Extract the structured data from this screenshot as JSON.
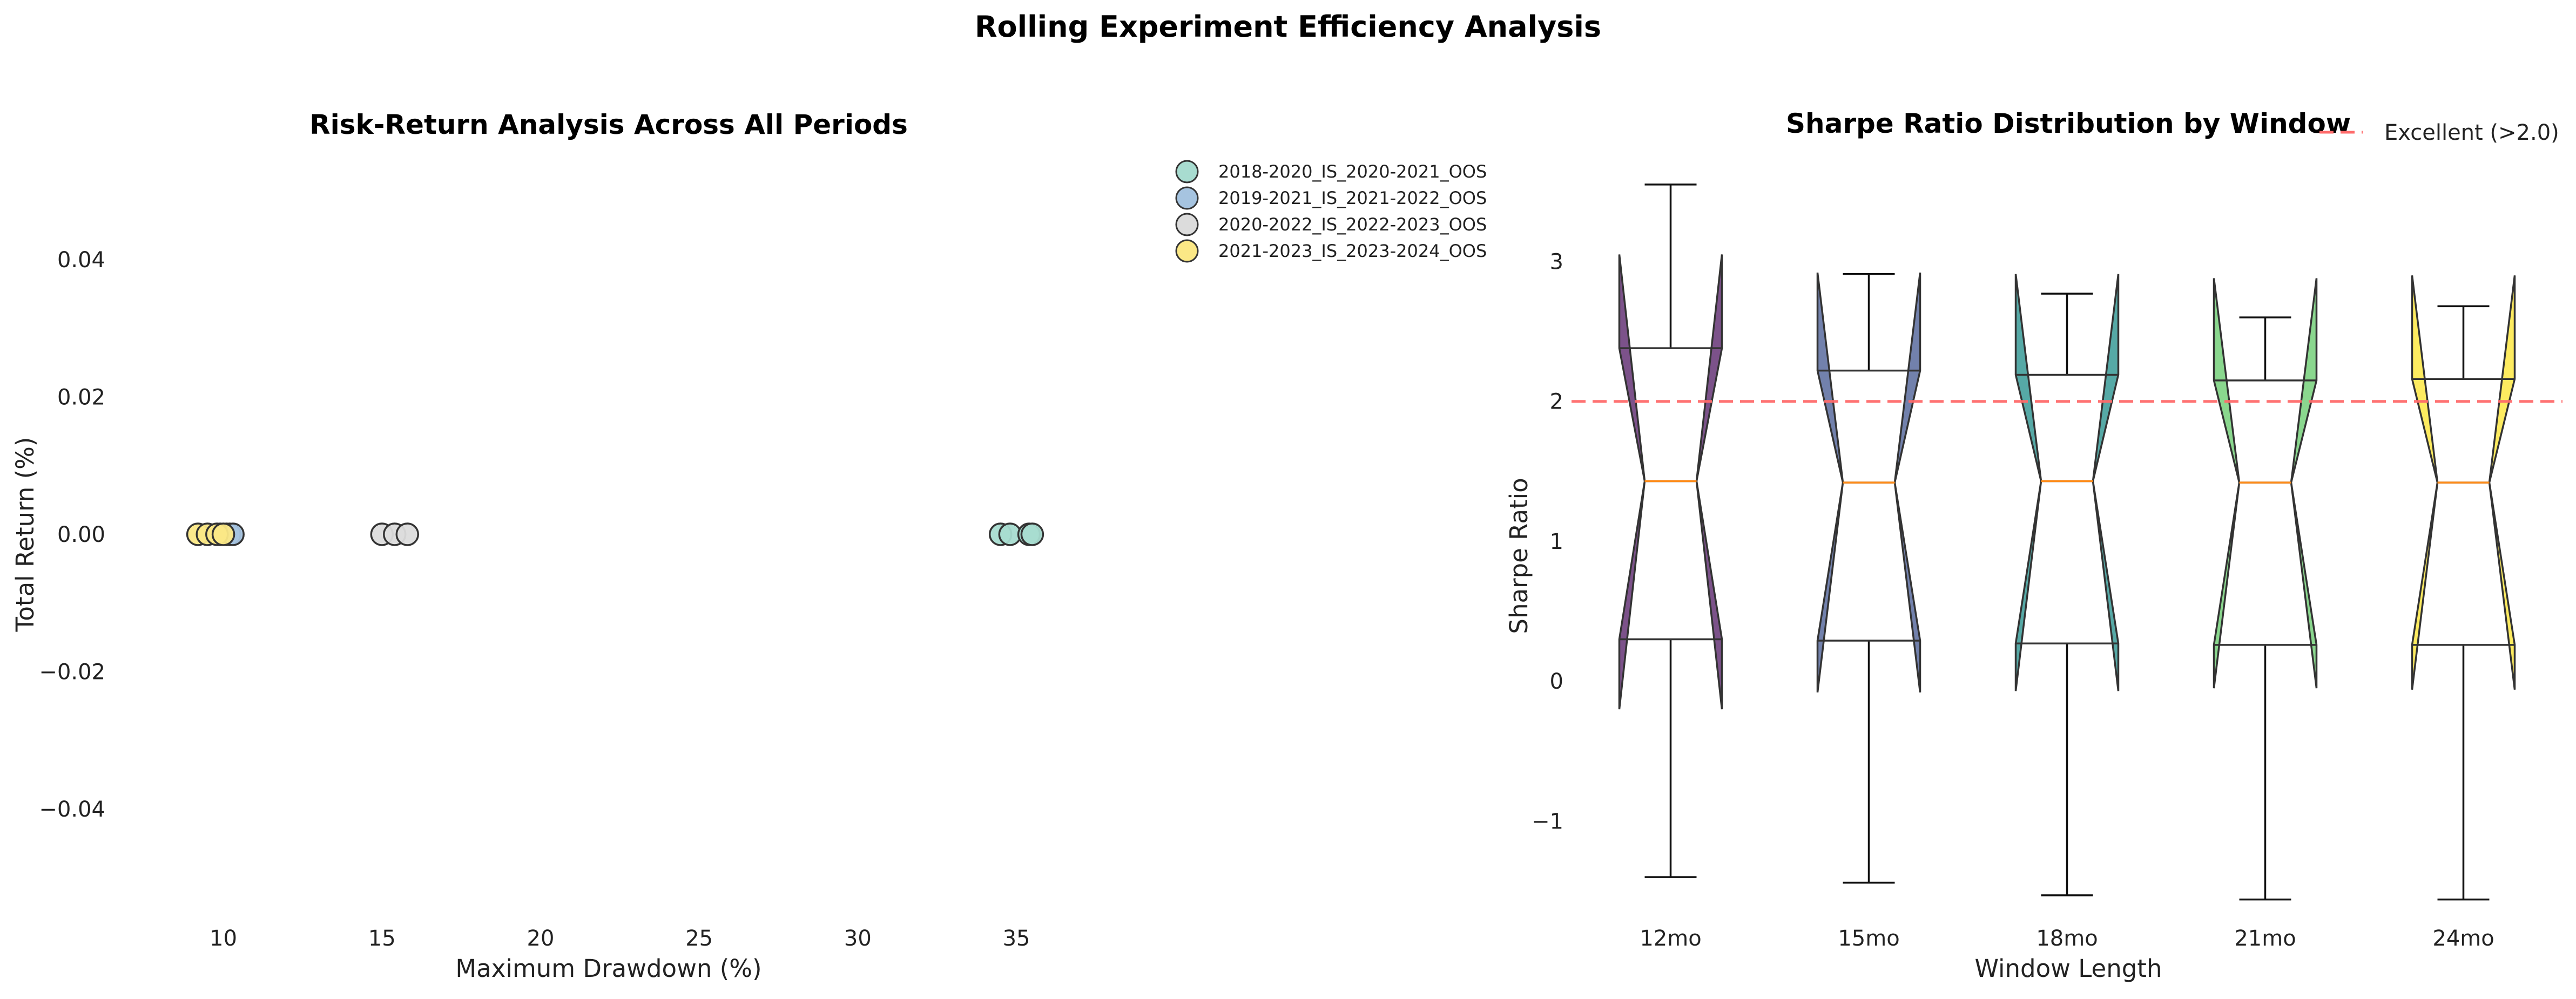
{
  "figure": {
    "title": "Rolling Experiment Efficiency Analysis"
  },
  "chart_data": [
    {
      "type": "scatter",
      "title": "Risk-Return Analysis Across All Periods",
      "xlabel": "Maximum Drawdown (%)",
      "ylabel": "Total Return (%)",
      "xlim": [
        7.3,
        38.2
      ],
      "ylim": [
        -0.055,
        0.055
      ],
      "xticks": [
        10,
        15,
        20,
        25,
        30,
        35
      ],
      "xtick_labels": [
        "10",
        "15",
        "20",
        "25",
        "30",
        "35"
      ],
      "yticks": [
        -0.04,
        -0.02,
        0.0,
        0.02,
        0.04
      ],
      "ytick_labels": [
        "−0.04",
        "−0.02",
        "0.00",
        "0.02",
        "0.04"
      ],
      "grid": false,
      "legend_position": "top-right",
      "series": [
        {
          "name": "2018-2020_IS_2020-2021_OOS",
          "color": "#a8dcd0",
          "points": [
            {
              "x": 10.1,
              "y": 0
            },
            {
              "x": 34.5,
              "y": 0
            },
            {
              "x": 34.8,
              "y": 0
            },
            {
              "x": 35.4,
              "y": 0
            },
            {
              "x": 35.5,
              "y": 0
            }
          ]
        },
        {
          "name": "2019-2021_IS_2021-2022_OOS",
          "color": "#a6c4e0",
          "points": [
            {
              "x": 9.9,
              "y": 0
            },
            {
              "x": 10.2,
              "y": 0
            },
            {
              "x": 10.3,
              "y": 0
            }
          ]
        },
        {
          "name": "2020-2022_IS_2022-2023_OOS",
          "color": "#dcdcdc",
          "points": [
            {
              "x": 15.0,
              "y": 0
            },
            {
              "x": 15.4,
              "y": 0
            },
            {
              "x": 15.8,
              "y": 0
            }
          ]
        },
        {
          "name": "2021-2023_IS_2023-2024_OOS",
          "color": "#fbe886",
          "points": [
            {
              "x": 9.2,
              "y": 0
            },
            {
              "x": 9.5,
              "y": 0
            },
            {
              "x": 9.8,
              "y": 0
            },
            {
              "x": 10.0,
              "y": 0
            }
          ]
        }
      ]
    },
    {
      "type": "box",
      "title": "Sharpe Ratio Distribution by Window",
      "xlabel": "Window Length",
      "ylabel": "Sharpe Ratio",
      "ylim": [
        -1.65,
        3.75
      ],
      "yticks": [
        -1,
        0,
        1,
        2,
        3
      ],
      "ytick_labels": [
        "−1",
        "0",
        "1",
        "2",
        "3"
      ],
      "grid": false,
      "notched": true,
      "legend_position": "top-right",
      "reference_line": {
        "label": "Excellent (>2.0)",
        "value": 2.0,
        "color": "#ff6b6b",
        "style": "dashed"
      },
      "categories": [
        "12mo",
        "15mo",
        "18mo",
        "21mo",
        "24mo"
      ],
      "boxes": [
        {
          "category": "12mo",
          "whisker_low": -1.4,
          "q1": 0.3,
          "median": 1.43,
          "q3": 2.38,
          "whisker_high": 3.55,
          "notch_low": -0.2,
          "notch_high": 3.05,
          "color": "#6a3a7a"
        },
        {
          "category": "15mo",
          "whisker_low": -1.44,
          "q1": 0.29,
          "median": 1.42,
          "q3": 2.22,
          "whisker_high": 2.91,
          "notch_low": -0.08,
          "notch_high": 2.92,
          "color": "#5f70a0"
        },
        {
          "category": "18mo",
          "whisker_low": -1.53,
          "q1": 0.27,
          "median": 1.43,
          "q3": 2.19,
          "whisker_high": 2.77,
          "notch_low": -0.07,
          "notch_high": 2.91,
          "color": "#3f9d9a"
        },
        {
          "category": "21mo",
          "whisker_low": -1.56,
          "q1": 0.26,
          "median": 1.42,
          "q3": 2.15,
          "whisker_high": 2.6,
          "notch_low": -0.05,
          "notch_high": 2.88,
          "color": "#7ad27e"
        },
        {
          "category": "24mo",
          "whisker_low": -1.56,
          "q1": 0.26,
          "median": 1.42,
          "q3": 2.16,
          "whisker_high": 2.68,
          "notch_low": -0.06,
          "notch_high": 2.9,
          "color": "#fde84a"
        }
      ]
    }
  ]
}
